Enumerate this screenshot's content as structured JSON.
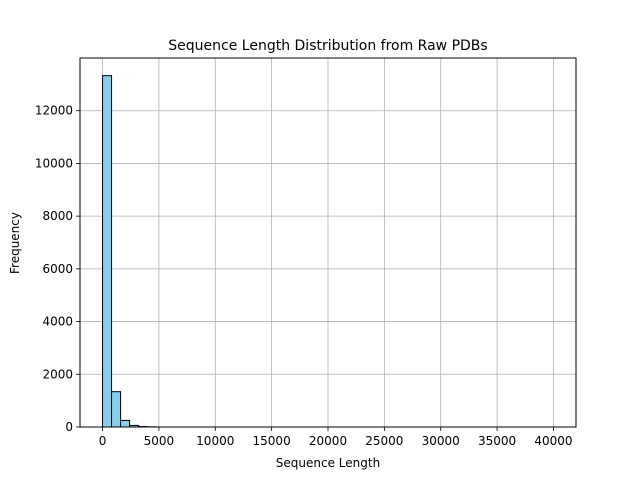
{
  "chart_data": {
    "type": "bar",
    "subtype": "histogram",
    "title": "Sequence Length Distribution from Raw PDBs",
    "xlabel": "Sequence Length",
    "ylabel": "Frequency",
    "xlim": [
      -2000,
      42000
    ],
    "ylim": [
      0,
      14000
    ],
    "xticks": [
      0,
      5000,
      10000,
      15000,
      20000,
      25000,
      30000,
      35000,
      40000
    ],
    "yticks": [
      0,
      2000,
      4000,
      6000,
      8000,
      10000,
      12000
    ],
    "grid": true,
    "bar_color": "#87ceeb",
    "edge_color": "#000000",
    "bins": [
      {
        "start": 0,
        "end": 800,
        "count": 13330
      },
      {
        "start": 800,
        "end": 1600,
        "count": 1340
      },
      {
        "start": 1600,
        "end": 2400,
        "count": 250
      },
      {
        "start": 2400,
        "end": 3200,
        "count": 60
      },
      {
        "start": 3200,
        "end": 4000,
        "count": 15
      },
      {
        "start": 4000,
        "end": 4800,
        "count": 6
      }
    ]
  }
}
